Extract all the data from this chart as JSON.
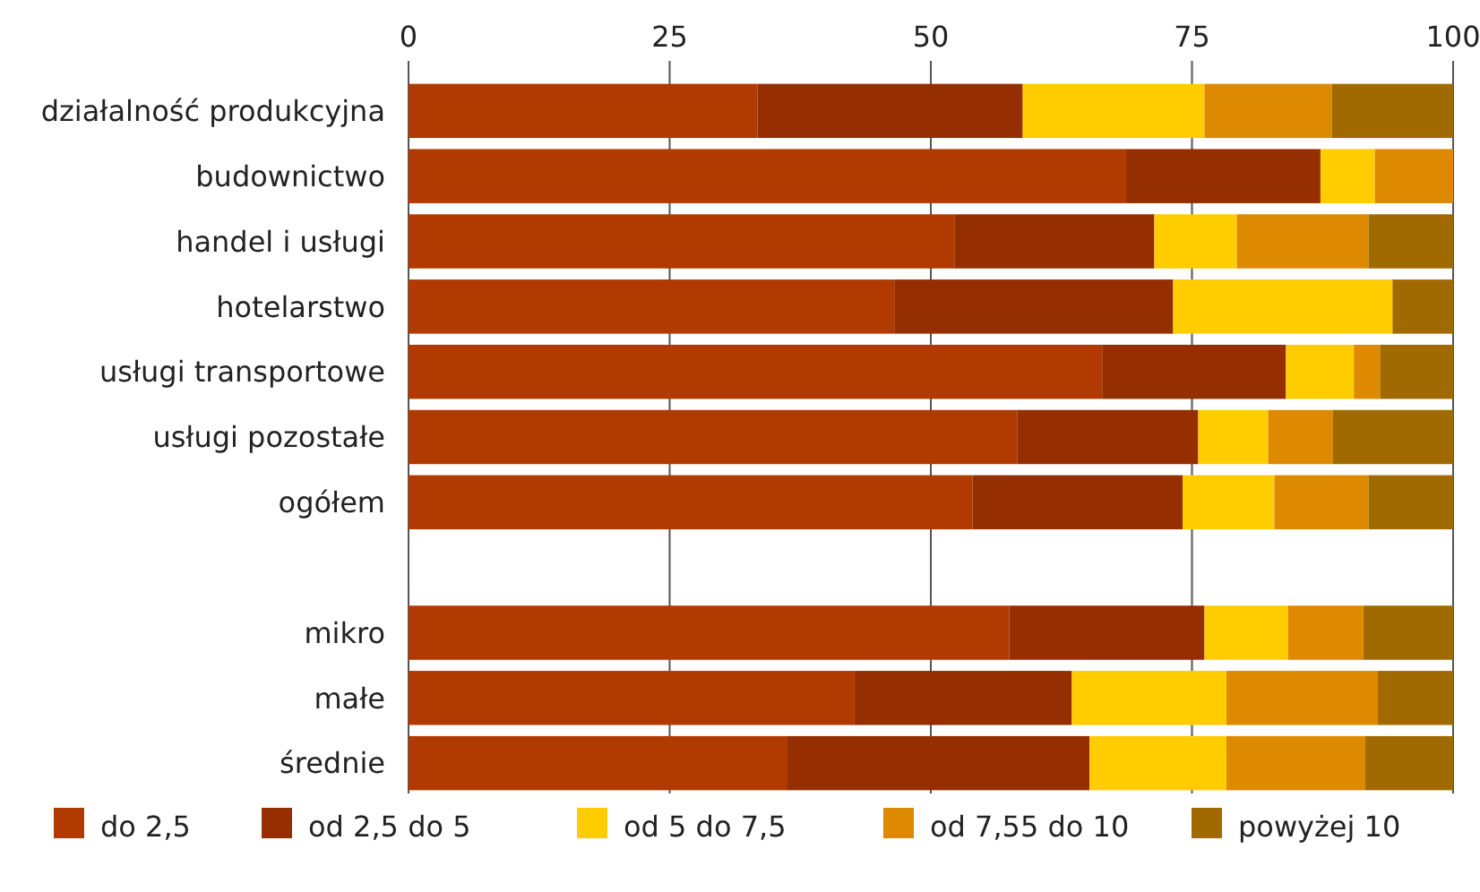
{
  "chart_data": {
    "type": "bar",
    "orientation": "horizontal",
    "stacked": true,
    "categories": [
      "działalność produkcyjna",
      "budownictwo",
      "handel i usługi",
      "hotelarstwo",
      "usługi transportowe",
      "usługi pozostałe",
      "ogółem",
      null,
      "mikro",
      "małe",
      "średnie"
    ],
    "series": [
      {
        "name": "do 2,5",
        "color": "#b03a00",
        "values": [
          33.4,
          68.7,
          52.3,
          46.5,
          66.4,
          58.3,
          54.0,
          null,
          57.5,
          42.7,
          36.2
        ]
      },
      {
        "name": "od 2,5 do 5",
        "color": "#952e00",
        "values": [
          25.4,
          18.6,
          19.1,
          26.7,
          17.6,
          17.3,
          20.1,
          null,
          18.7,
          20.8,
          29.0
        ]
      },
      {
        "name": "od 5 do 7,5",
        "color": "#ffcc00",
        "values": [
          17.4,
          5.2,
          7.9,
          21.0,
          6.5,
          6.7,
          8.8,
          null,
          8.0,
          14.8,
          13.1
        ]
      },
      {
        "name": "od 7,55 do 10",
        "color": "#dd8a00",
        "values": [
          12.2,
          7.5,
          12.6,
          0,
          2.5,
          6.2,
          9.0,
          null,
          7.2,
          14.5,
          13.3
        ]
      },
      {
        "name": "powyżej 10",
        "color": "#a06a00",
        "values": [
          11.6,
          0,
          8.1,
          5.8,
          7.0,
          11.5,
          8.1,
          null,
          8.6,
          7.2,
          8.4
        ]
      }
    ],
    "xlim": [
      0,
      100
    ],
    "xticks": [
      0,
      25,
      50,
      75,
      100
    ],
    "grid": "x",
    "legend": "bottom"
  }
}
